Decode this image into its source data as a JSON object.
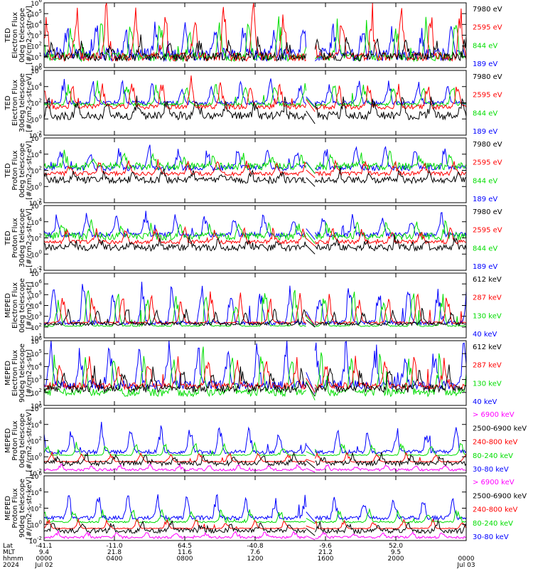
{
  "colors": {
    "black": "#000000",
    "red": "#ff0000",
    "green": "#00dd00",
    "blue": "#0000ff",
    "magenta": "#ff00ff"
  },
  "chart_data": [
    {
      "type": "line",
      "instrument": "TED",
      "ylabel": [
        "TED",
        "Electron Flux",
        "0deg telescope",
        "[#/cm2-s-str-eV]"
      ],
      "yscale": "log",
      "ylim_exp": [
        0,
        6
      ],
      "ytick_exps": [
        0,
        1,
        2,
        3,
        4,
        5,
        6
      ],
      "series": [
        {
          "name": "7980 eV",
          "color": "black",
          "base": 1,
          "spread": 0.8,
          "spikes": 1.5,
          "layer": 4
        },
        {
          "name": "2595 eV",
          "color": "red",
          "base": 1,
          "spread": 0.8,
          "spikes": 4.5,
          "layer": 3
        },
        {
          "name": "844 eV",
          "color": "green",
          "base": 1,
          "spread": 0.8,
          "spikes": 3.0,
          "layer": 2
        },
        {
          "name": "189 eV",
          "color": "blue",
          "base": 1.2,
          "spread": 1.2,
          "spikes": 2.5,
          "layer": 1
        }
      ]
    },
    {
      "type": "line",
      "instrument": "TED",
      "ylabel": [
        "TED",
        "Electron Flux",
        "30deg telescope",
        "[#/cm2-s-str-eV]"
      ],
      "yscale": "log",
      "ylim_exp": [
        -2,
        6
      ],
      "ytick_exps": [
        -2,
        0,
        2,
        4,
        6
      ],
      "gap_line": true,
      "series": [
        {
          "name": "7980 eV",
          "color": "black",
          "base": 0.4,
          "spread": 1.0,
          "spikes": 2.0,
          "layer": 4
        },
        {
          "name": "2595 eV",
          "color": "red",
          "base": 1.5,
          "spread": 0.6,
          "spikes": 3.0,
          "layer": 3
        },
        {
          "name": "844 eV",
          "color": "green",
          "base": 1.8,
          "spread": 0.4,
          "spikes": 2.5,
          "layer": 2
        },
        {
          "name": "189 eV",
          "color": "blue",
          "base": 2.0,
          "spread": 0.5,
          "spikes": 2.5,
          "layer": 1
        }
      ]
    },
    {
      "type": "line",
      "instrument": "TED",
      "ylabel": [
        "TED",
        "Proton Flux",
        "0deg telescope",
        "[#/cm2-s-str-eV]"
      ],
      "yscale": "log",
      "ylim_exp": [
        -2,
        6
      ],
      "ytick_exps": [
        -2,
        0,
        2,
        4,
        6
      ],
      "gap_line": true,
      "series": [
        {
          "name": "7980 eV",
          "color": "black",
          "base": 0.8,
          "spread": 0.8,
          "spikes": 1.0,
          "layer": 4
        },
        {
          "name": "2595 eV",
          "color": "red",
          "base": 1.6,
          "spread": 0.5,
          "spikes": 1.5,
          "layer": 3
        },
        {
          "name": "844 eV",
          "color": "green",
          "base": 2.5,
          "spread": 0.9,
          "spikes": 1.5,
          "layer": 2
        },
        {
          "name": "189 eV",
          "color": "blue",
          "base": 2.3,
          "spread": 0.7,
          "spikes": 2.5,
          "layer": 1
        }
      ]
    },
    {
      "type": "line",
      "instrument": "TED",
      "ylabel": [
        "TED",
        "Proton Flux",
        "30deg telescope",
        "[#/cm2-s-str-eV]"
      ],
      "yscale": "log",
      "ylim_exp": [
        -2,
        6
      ],
      "ytick_exps": [
        -2,
        0,
        2,
        4,
        6
      ],
      "gap_line": true,
      "series": [
        {
          "name": "7980 eV",
          "color": "black",
          "base": 0.8,
          "spread": 0.8,
          "spikes": 1.0,
          "layer": 4
        },
        {
          "name": "2595 eV",
          "color": "red",
          "base": 1.5,
          "spread": 0.5,
          "spikes": 1.5,
          "layer": 3
        },
        {
          "name": "844 eV",
          "color": "green",
          "base": 2.2,
          "spread": 0.9,
          "spikes": 1.5,
          "layer": 2
        },
        {
          "name": "189 eV",
          "color": "blue",
          "base": 2.4,
          "spread": 0.6,
          "spikes": 2.5,
          "layer": 1
        }
      ]
    },
    {
      "type": "line",
      "instrument": "MEPED",
      "ylabel": [
        "MEPED",
        "Electron Flux",
        "0deg telescope",
        "[#/cm2-s-str]"
      ],
      "yscale": "log",
      "ylim_exp": [
        1,
        7
      ],
      "ytick_exps": [
        1,
        2,
        3,
        4,
        5,
        6,
        7
      ],
      "gap_line": true,
      "series": [
        {
          "name": "612 keV",
          "color": "black",
          "base": 2.3,
          "spread": 0.3,
          "spikes": 1.2,
          "layer": 4
        },
        {
          "name": "287 keV",
          "color": "red",
          "base": 2.4,
          "spread": 0.2,
          "spikes": 2.5,
          "layer": 3
        },
        {
          "name": "130 keV",
          "color": "green",
          "base": 2.1,
          "spread": 0.1,
          "spikes": 3.0,
          "layer": 2
        },
        {
          "name": "40 keV",
          "color": "blue",
          "base": 2.4,
          "spread": 0.4,
          "spikes": 3.5,
          "layer": 1
        }
      ]
    },
    {
      "type": "line",
      "instrument": "MEPED",
      "ylabel": [
        "MEPED",
        "Electron Flux",
        "90deg telescope",
        "[#/cm2-s-str]"
      ],
      "yscale": "log",
      "ylim_exp": [
        1,
        6
      ],
      "ytick_exps": [
        1,
        2,
        3,
        4,
        5,
        6
      ],
      "gap_line": true,
      "series": [
        {
          "name": "612 keV",
          "color": "black",
          "base": 2.3,
          "spread": 0.6,
          "spikes": 1.5,
          "layer": 4
        },
        {
          "name": "287 keV",
          "color": "red",
          "base": 2.5,
          "spread": 0.5,
          "spikes": 2.0,
          "layer": 3
        },
        {
          "name": "130 keV",
          "color": "green",
          "base": 2.0,
          "spread": 0.6,
          "spikes": 3.0,
          "layer": 2
        },
        {
          "name": "40 keV",
          "color": "blue",
          "base": 2.6,
          "spread": 0.7,
          "spikes": 3.2,
          "layer": 1
        }
      ]
    },
    {
      "type": "line",
      "instrument": "MEPED",
      "ylabel": [
        "MEPED",
        "Proton Flux",
        "0deg telescope",
        "[#/cm2-s-str-keV]"
      ],
      "yscale": "log",
      "ylim_exp": [
        -2,
        6
      ],
      "ytick_exps": [
        -2,
        0,
        2,
        4,
        6
      ],
      "gap_line": true,
      "series": [
        {
          "name": "> 6900 keV",
          "color": "magenta",
          "base": -1.6,
          "spread": 0.3,
          "spikes": 0.6,
          "layer": 4
        },
        {
          "name": "2500-6900 keV",
          "color": "black",
          "base": -0.8,
          "spread": 0.6,
          "spikes": 1.0,
          "layer": 5
        },
        {
          "name": "240-800 keV",
          "color": "red",
          "base": -0.6,
          "spread": 0.1,
          "spikes": 1.0,
          "layer": 3
        },
        {
          "name": "80-240 keV",
          "color": "green",
          "base": 0.2,
          "spread": 0.1,
          "spikes": 1.5,
          "layer": 2
        },
        {
          "name": "30-80 keV",
          "color": "blue",
          "base": 0.6,
          "spread": 0.5,
          "spikes": 3.0,
          "layer": 1
        }
      ]
    },
    {
      "type": "line",
      "instrument": "MEPED",
      "ylabel": [
        "MEPED",
        "Proton Flux",
        "90deg telescope",
        "[#/cm2-s-str-keV]"
      ],
      "yscale": "log",
      "ylim_exp": [
        -2,
        6
      ],
      "ytick_exps": [
        -2,
        0,
        2,
        4,
        6
      ],
      "gap_line": true,
      "series": [
        {
          "name": "> 6900 keV",
          "color": "magenta",
          "base": -1.6,
          "spread": 0.3,
          "spikes": 0.6,
          "layer": 4
        },
        {
          "name": "2500-6900 keV",
          "color": "black",
          "base": -0.8,
          "spread": 0.6,
          "spikes": 1.0,
          "layer": 5
        },
        {
          "name": "240-800 keV",
          "color": "red",
          "base": -0.5,
          "spread": 0.1,
          "spikes": 1.0,
          "layer": 3
        },
        {
          "name": "80-240 keV",
          "color": "green",
          "base": 0.3,
          "spread": 0.2,
          "spikes": 1.5,
          "layer": 2
        },
        {
          "name": "30-80 keV",
          "color": "blue",
          "base": 0.8,
          "spread": 0.5,
          "spikes": 2.5,
          "layer": 1
        }
      ]
    }
  ],
  "time_axis": {
    "row_labels": [
      "Lat",
      "MLT",
      "hhmm",
      "2024"
    ],
    "data_gap_hours": [
      14.9,
      15.4
    ],
    "ticks": [
      {
        "hours": 0,
        "lat": "-41.1",
        "mlt": "9.4",
        "hhmm": "0000",
        "date": "Jul 02"
      },
      {
        "hours": 4,
        "lat": "-11.0",
        "mlt": "21.8",
        "hhmm": "0400",
        "date": ""
      },
      {
        "hours": 8,
        "lat": "64.5",
        "mlt": "11.6",
        "hhmm": "0800",
        "date": ""
      },
      {
        "hours": 12,
        "lat": "-40.8",
        "mlt": "7.6",
        "hhmm": "1200",
        "date": ""
      },
      {
        "hours": 16,
        "lat": "-9.6",
        "mlt": "21.2",
        "hhmm": "1600",
        "date": ""
      },
      {
        "hours": 20,
        "lat": "52.0",
        "mlt": "9.5",
        "hhmm": "2000",
        "date": ""
      },
      {
        "hours": 24,
        "lat": "",
        "mlt": "",
        "hhmm": "0000",
        "date": "Jul 03"
      }
    ]
  }
}
